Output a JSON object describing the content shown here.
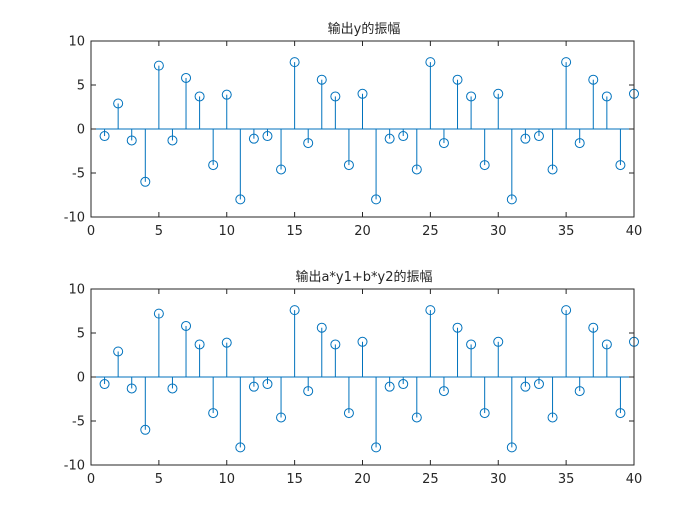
{
  "chart_data": [
    {
      "type": "stem",
      "title": "输出y的振幅",
      "xlim": [
        0,
        40
      ],
      "ylim": [
        -10,
        10
      ],
      "xticks": [
        0,
        5,
        10,
        15,
        20,
        25,
        30,
        35,
        40
      ],
      "yticks": [
        -10,
        -5,
        0,
        5,
        10
      ],
      "grid": false,
      "color": "#0072BD",
      "x": [
        1,
        2,
        3,
        4,
        5,
        6,
        7,
        8,
        9,
        10,
        11,
        12,
        13,
        14,
        15,
        16,
        17,
        18,
        19,
        20,
        21,
        22,
        23,
        24,
        25,
        26,
        27,
        28,
        29,
        30,
        31,
        32,
        33,
        34,
        35,
        36,
        37,
        38,
        39,
        40
      ],
      "values": [
        -0.8,
        2.9,
        -1.3,
        -6.0,
        7.2,
        -1.3,
        5.8,
        3.7,
        -4.1,
        3.9,
        -8.0,
        -1.1,
        -0.8,
        -4.6,
        7.6,
        -1.6,
        5.6,
        3.7,
        -4.1,
        4.0,
        -8.0,
        -1.1,
        -0.8,
        -4.6,
        7.6,
        -1.6,
        5.6,
        3.7,
        -4.1,
        4.0,
        -8.0,
        -1.1,
        -0.8,
        -4.6,
        7.6,
        -1.6,
        5.6,
        3.7,
        -4.1,
        4.0
      ]
    },
    {
      "type": "stem",
      "title": "输出a*y1+b*y2的振幅",
      "xlim": [
        0,
        40
      ],
      "ylim": [
        -10,
        10
      ],
      "xticks": [
        0,
        5,
        10,
        15,
        20,
        25,
        30,
        35,
        40
      ],
      "yticks": [
        -10,
        -5,
        0,
        5,
        10
      ],
      "grid": false,
      "color": "#0072BD",
      "x": [
        1,
        2,
        3,
        4,
        5,
        6,
        7,
        8,
        9,
        10,
        11,
        12,
        13,
        14,
        15,
        16,
        17,
        18,
        19,
        20,
        21,
        22,
        23,
        24,
        25,
        26,
        27,
        28,
        29,
        30,
        31,
        32,
        33,
        34,
        35,
        36,
        37,
        38,
        39,
        40
      ],
      "values": [
        -0.8,
        2.9,
        -1.3,
        -6.0,
        7.2,
        -1.3,
        5.8,
        3.7,
        -4.1,
        3.9,
        -8.0,
        -1.1,
        -0.8,
        -4.6,
        7.6,
        -1.6,
        5.6,
        3.7,
        -4.1,
        4.0,
        -8.0,
        -1.1,
        -0.8,
        -4.6,
        7.6,
        -1.6,
        5.6,
        3.7,
        -4.1,
        4.0,
        -8.0,
        -1.1,
        -0.8,
        -4.6,
        7.6,
        -1.6,
        5.6,
        3.7,
        -4.1,
        4.0
      ]
    }
  ]
}
